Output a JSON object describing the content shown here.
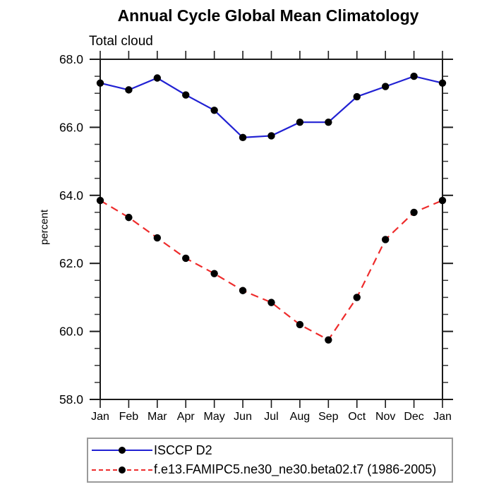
{
  "title": "Annual Cycle Global Mean Climatology",
  "subtitle": "Total cloud",
  "ylabel": "percent",
  "chart_data": {
    "type": "line",
    "x_categories": [
      "Jan",
      "Feb",
      "Mar",
      "Apr",
      "May",
      "Jun",
      "Jul",
      "Aug",
      "Sep",
      "Oct",
      "Nov",
      "Dec",
      "Jan"
    ],
    "ylim": [
      58.0,
      68.0
    ],
    "ytick_labels": [
      "58.0",
      "60.0",
      "62.0",
      "64.0",
      "66.0",
      "68.0"
    ],
    "ytick_minor_step": 0.5,
    "xlabel": "",
    "ylabel": "percent",
    "grid": false,
    "legend_position": "bottom",
    "marker_color": "#000000",
    "frame_color": "#1a1a1a",
    "series": [
      {
        "name": "ISCCP D2",
        "color": "#2121d3",
        "style": "solid",
        "marker": "black-dot",
        "values": [
          67.3,
          67.1,
          67.45,
          66.95,
          66.5,
          65.7,
          65.75,
          66.15,
          66.15,
          66.9,
          67.2,
          67.5,
          67.3
        ]
      },
      {
        "name": "f.e13.FAMIPC5.ne30_ne30.beta02.t7 (1986-2005)",
        "color": "#ee2c2c",
        "style": "dashed",
        "marker": "black-dot",
        "values": [
          63.85,
          63.35,
          62.75,
          62.15,
          61.7,
          61.2,
          60.85,
          60.2,
          59.75,
          61.0,
          62.7,
          63.5,
          63.85
        ]
      }
    ]
  }
}
